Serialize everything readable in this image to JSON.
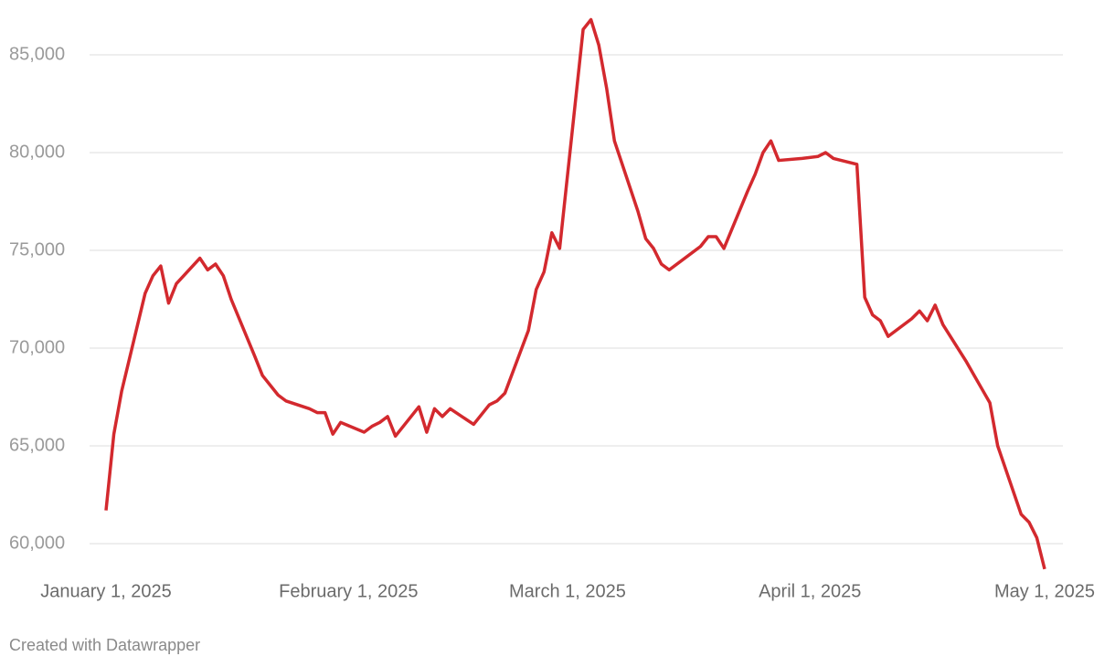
{
  "chart_data": {
    "type": "line",
    "credit": "Created with Datawrapper",
    "x": [
      "2025-01-01",
      "2025-01-02",
      "2025-01-03",
      "2025-01-06",
      "2025-01-07",
      "2025-01-08",
      "2025-01-09",
      "2025-01-10",
      "2025-01-13",
      "2025-01-14",
      "2025-01-15",
      "2025-01-16",
      "2025-01-17",
      "2025-01-20",
      "2025-01-21",
      "2025-01-23",
      "2025-01-24",
      "2025-01-27",
      "2025-01-28",
      "2025-01-29",
      "2025-01-30",
      "2025-01-31",
      "2025-02-03",
      "2025-02-04",
      "2025-02-05",
      "2025-02-06",
      "2025-02-07",
      "2025-02-10",
      "2025-02-11",
      "2025-02-12",
      "2025-02-13",
      "2025-02-14",
      "2025-02-17",
      "2025-02-19",
      "2025-02-20",
      "2025-02-21",
      "2025-02-24",
      "2025-02-25",
      "2025-02-26",
      "2025-02-27",
      "2025-02-28",
      "2025-03-03",
      "2025-03-04",
      "2025-03-05",
      "2025-03-06",
      "2025-03-07",
      "2025-03-10",
      "2025-03-11",
      "2025-03-12",
      "2025-03-13",
      "2025-03-14",
      "2025-03-18",
      "2025-03-19",
      "2025-03-20",
      "2025-03-21",
      "2025-03-24",
      "2025-03-25",
      "2025-03-26",
      "2025-03-27",
      "2025-03-28",
      "2025-03-31",
      "2025-04-02",
      "2025-04-03",
      "2025-04-04",
      "2025-04-07",
      "2025-04-08",
      "2025-04-09",
      "2025-04-10",
      "2025-04-11",
      "2025-04-14",
      "2025-04-15",
      "2025-04-16",
      "2025-04-17",
      "2025-04-18",
      "2025-04-21",
      "2025-04-22",
      "2025-04-23",
      "2025-04-24",
      "2025-04-25",
      "2025-04-28",
      "2025-04-29",
      "2025-04-30",
      "2025-05-01"
    ],
    "series": [
      {
        "color": "#d3292e",
        "values": [
          61700,
          65600,
          67800,
          72800,
          73700,
          74200,
          72300,
          73300,
          74600,
          74000,
          74300,
          73700,
          72500,
          69600,
          68600,
          67600,
          67300,
          66900,
          66700,
          66700,
          65600,
          66200,
          65700,
          66000,
          66200,
          66500,
          65500,
          67000,
          65700,
          66900,
          66500,
          66900,
          66100,
          67100,
          67300,
          67700,
          70900,
          73000,
          73900,
          75900,
          75100,
          86300,
          86800,
          85500,
          83300,
          80600,
          77000,
          75600,
          75100,
          74300,
          74000,
          75200,
          75700,
          75700,
          75100,
          78000,
          78900,
          80000,
          80600,
          79600,
          79700,
          79800,
          80000,
          79700,
          79400,
          72600,
          71700,
          71400,
          70600,
          71500,
          71900,
          71400,
          72200,
          71200,
          69300,
          68600,
          67900,
          67200,
          65000,
          61500,
          61100,
          60300,
          58700
        ]
      }
    ],
    "xlim": [
      "2025-01-01",
      "2025-05-01"
    ],
    "xticks": [
      {
        "value": "2025-01-01",
        "label": "January 1, 2025"
      },
      {
        "value": "2025-02-01",
        "label": "February 1, 2025"
      },
      {
        "value": "2025-03-01",
        "label": "March 1, 2025"
      },
      {
        "value": "2025-04-01",
        "label": "April 1, 2025"
      },
      {
        "value": "2025-05-01",
        "label": "May 1, 2025"
      }
    ],
    "ylim": [
      58500,
      87000
    ],
    "yticks": [
      {
        "value": 60000,
        "label": "60,000"
      },
      {
        "value": 65000,
        "label": "65,000"
      },
      {
        "value": 70000,
        "label": "70,000"
      },
      {
        "value": 75000,
        "label": "75,000"
      },
      {
        "value": 80000,
        "label": "80,000"
      },
      {
        "value": 85000,
        "label": "85,000"
      }
    ],
    "grid": true
  }
}
